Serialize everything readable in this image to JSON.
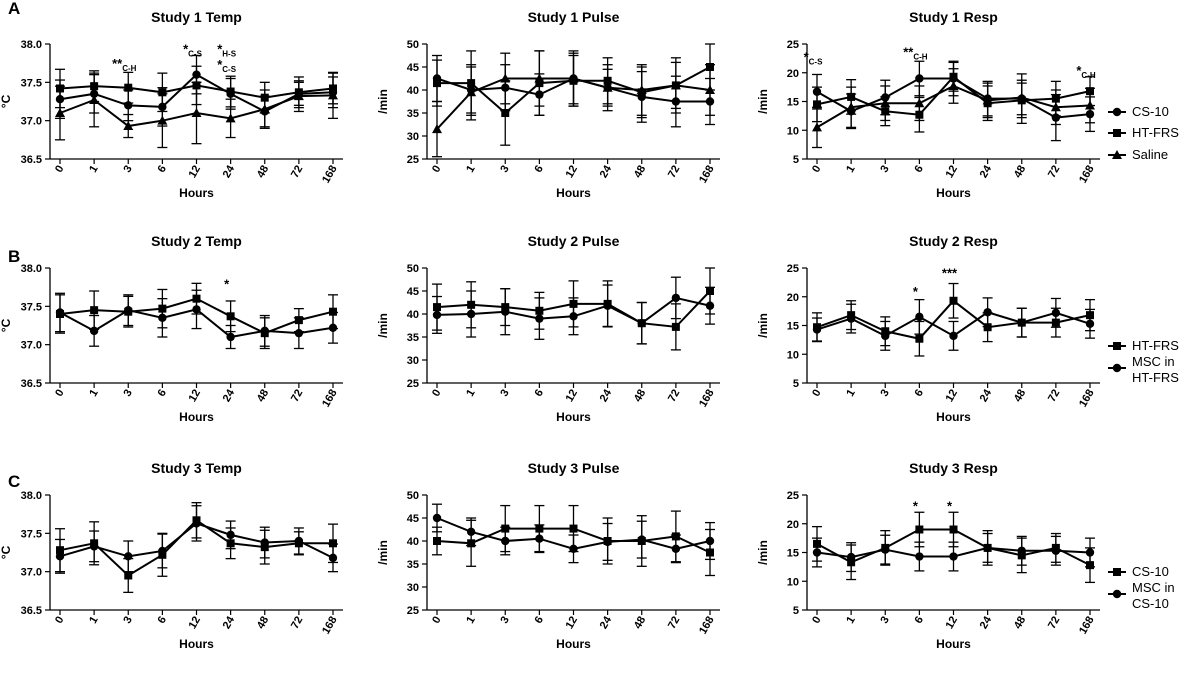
{
  "chart_data": {
    "x_categories": [
      "0",
      "1",
      "3",
      "6",
      "12",
      "24",
      "48",
      "72",
      "168"
    ],
    "x_label": "Hours",
    "panel_labels": [
      "A",
      "B",
      "C"
    ],
    "studies": [
      {
        "panel": "A",
        "legend": [
          "CS-10",
          "HT-FRS",
          "Saline"
        ],
        "charts": [
          {
            "type": "line",
            "title": "Study 1 Temp",
            "ylabel": "°C",
            "ylim": [
              36.5,
              38.0
            ],
            "yticks": [
              "36.5",
              "37.0",
              "37.5",
              "38.0"
            ],
            "series": [
              {
                "name": "CS-10",
                "marker": "circle",
                "values": [
                  37.28,
                  37.35,
                  37.2,
                  37.18,
                  37.6,
                  37.35,
                  37.12,
                  37.35,
                  37.37
                ],
                "errors": [
                  0.25,
                  0.25,
                  0.2,
                  0.25,
                  0.25,
                  0.2,
                  0.2,
                  0.15,
                  0.2
                ]
              },
              {
                "name": "HT-FRS",
                "marker": "square",
                "values": [
                  37.42,
                  37.45,
                  37.43,
                  37.37,
                  37.46,
                  37.38,
                  37.3,
                  37.37,
                  37.42
                ],
                "errors": [
                  0.25,
                  0.2,
                  0.2,
                  0.25,
                  0.25,
                  0.2,
                  0.2,
                  0.2,
                  0.2
                ]
              },
              {
                "name": "Saline",
                "marker": "triangle",
                "values": [
                  37.1,
                  37.27,
                  36.93,
                  37.0,
                  37.1,
                  37.03,
                  37.15,
                  37.32,
                  37.33
                ],
                "errors": [
                  0.35,
                  0.35,
                  0.15,
                  0.35,
                  0.4,
                  0.25,
                  0.25,
                  0.2,
                  0.3
                ]
              }
            ],
            "annotations": [
              {
                "label": "**",
                "sub": "C-H",
                "x": "3",
                "y": 37.75
              },
              {
                "label": "*",
                "sub": "C-S",
                "x": "12",
                "y": 37.94
              },
              {
                "label": "*",
                "sub": "H-S",
                "x": "24",
                "y": 37.94
              },
              {
                "label": "*",
                "sub": "C-S",
                "x": "24",
                "y": 37.74
              }
            ]
          },
          {
            "type": "line",
            "title": "Study 1 Pulse",
            "ylabel": "/min",
            "ylim": [
              25,
              50
            ],
            "yticks": [
              "25",
              "30",
              "35",
              "40",
              "45",
              "50"
            ],
            "series": [
              {
                "name": "CS-10",
                "marker": "circle",
                "values": [
                  42.5,
                  40,
                  40.5,
                  39,
                  42.5,
                  40.5,
                  38.5,
                  37.5,
                  37.5
                ],
                "errors": [
                  5,
                  5,
                  5,
                  4.5,
                  5.5,
                  4,
                  5.5,
                  5.5,
                  5
                ]
              },
              {
                "name": "HT-FRS",
                "marker": "square",
                "values": [
                  41.5,
                  41.5,
                  35,
                  41.5,
                  42,
                  42,
                  39.5,
                  41,
                  45
                ],
                "errors": [
                  5,
                  7,
                  7,
                  7,
                  5.5,
                  5,
                  5.5,
                  6,
                  5
                ]
              },
              {
                "name": "Saline",
                "marker": "triangle",
                "values": [
                  31.5,
                  39.5,
                  42.5,
                  42.5,
                  42.5,
                  40.5,
                  40,
                  41,
                  40
                ],
                "errors": [
                  6,
                  6,
                  5.5,
                  6,
                  6,
                  5,
                  5.5,
                  5,
                  5.5
                ]
              }
            ],
            "annotations": []
          },
          {
            "type": "line",
            "title": "Study 1 Resp",
            "ylabel": "/min",
            "ylim": [
              5,
              25
            ],
            "yticks": [
              "5",
              "10",
              "15",
              "20",
              "25"
            ],
            "series": [
              {
                "name": "CS-10",
                "marker": "circle",
                "values": [
                  16.7,
                  13.3,
                  15.7,
                  19,
                  19,
                  15.5,
                  15.5,
                  12.2,
                  12.8
                ],
                "errors": [
                  3,
                  3,
                  3,
                  3,
                  3,
                  3,
                  4.3,
                  4,
                  3
                ]
              },
              {
                "name": "HT-FRS",
                "marker": "square",
                "values": [
                  14.5,
                  15.8,
                  13.3,
                  12.7,
                  19.3,
                  14.7,
                  15.2,
                  15.5,
                  16.8
                ],
                "errors": [
                  3,
                  3,
                  2.5,
                  3,
                  2.5,
                  3,
                  3,
                  3,
                  2.5
                ]
              },
              {
                "name": "Saline",
                "marker": "triangle",
                "values": [
                  10.5,
                  14,
                  14.7,
                  14.7,
                  17.7,
                  15.2,
                  15.7,
                  14,
                  14.3
                ],
                "errors": [
                  3.5,
                  3.5,
                  3,
                  3,
                  3,
                  3,
                  3,
                  3,
                  3
                ]
              }
            ],
            "annotations": [
              {
                "label": "*",
                "sub": "C-S",
                "x": "0",
                "y": 22.8
              },
              {
                "label": "**",
                "sub": "C-H",
                "x": "6",
                "y": 23.7
              },
              {
                "label": "*",
                "sub": "C-H",
                "x": "168",
                "y": 20.5
              }
            ]
          }
        ]
      },
      {
        "panel": "B",
        "legend": [
          "HT-FRS",
          "MSC in HT-FRS"
        ],
        "charts": [
          {
            "type": "line",
            "title": "Study 2 Temp",
            "ylabel": "°C",
            "ylim": [
              36.5,
              38.0
            ],
            "yticks": [
              "36.5",
              "37.0",
              "37.5",
              "38.0"
            ],
            "series": [
              {
                "name": "HT-FRS",
                "marker": "square",
                "values": [
                  37.4,
                  37.45,
                  37.43,
                  37.47,
                  37.6,
                  37.37,
                  37.15,
                  37.32,
                  37.43
                ],
                "errors": [
                  0.25,
                  0.25,
                  0.2,
                  0.25,
                  0.2,
                  0.2,
                  0.2,
                  0.15,
                  0.22
                ]
              },
              {
                "name": "MSC in HT-FRS",
                "marker": "circle",
                "values": [
                  37.42,
                  37.18,
                  37.45,
                  37.35,
                  37.46,
                  37.1,
                  37.18,
                  37.15,
                  37.22
                ],
                "errors": [
                  0.25,
                  0.2,
                  0.2,
                  0.25,
                  0.25,
                  0.15,
                  0.2,
                  0.2,
                  0.2
                ]
              }
            ],
            "annotations": [
              {
                "label": "*",
                "sub": "",
                "x": "24",
                "y": 37.8
              }
            ]
          },
          {
            "type": "line",
            "title": "Study 2 Pulse",
            "ylabel": "/min",
            "ylim": [
              25,
              50
            ],
            "yticks": [
              "25",
              "30",
              "35",
              "40",
              "45",
              "50"
            ],
            "series": [
              {
                "name": "HT-FRS",
                "marker": "square",
                "values": [
                  41.5,
                  42,
                  41.5,
                  40.7,
                  42.2,
                  42.2,
                  38,
                  37.2,
                  45
                ],
                "errors": [
                  5,
                  5,
                  4,
                  4,
                  5,
                  5,
                  4.5,
                  5,
                  5
                ]
              },
              {
                "name": "MSC in HT-FRS",
                "marker": "circle",
                "values": [
                  39.8,
                  40,
                  40.5,
                  39,
                  39.5,
                  41.8,
                  38,
                  43.5,
                  41.8
                ],
                "errors": [
                  4,
                  5,
                  5,
                  4.5,
                  4,
                  4.5,
                  4.5,
                  4.5,
                  4
                ]
              }
            ],
            "annotations": []
          },
          {
            "type": "line",
            "title": "Study 2 Resp",
            "ylabel": "/min",
            "ylim": [
              5,
              25
            ],
            "yticks": [
              "5",
              "10",
              "15",
              "20",
              "25"
            ],
            "series": [
              {
                "name": "HT-FRS",
                "marker": "square",
                "values": [
                  14.7,
                  16.8,
                  14,
                  12.7,
                  19.3,
                  14.7,
                  15.5,
                  15.5,
                  16.8
                ],
                "errors": [
                  2.5,
                  2.5,
                  2.5,
                  3,
                  3,
                  2.5,
                  2.5,
                  2.5,
                  2.7
                ]
              },
              {
                "name": "MSC in HT-FRS",
                "marker": "circle",
                "values": [
                  14.3,
                  16.2,
                  13.2,
                  16.5,
                  13.2,
                  17.3,
                  15.5,
                  17.2,
                  15.3
                ],
                "errors": [
                  2,
                  2.5,
                  2.5,
                  3,
                  2.5,
                  2.5,
                  2.5,
                  2.5,
                  2.5
                ]
              }
            ],
            "annotations": [
              {
                "label": "*",
                "sub": "",
                "x": "6",
                "y": 21
              },
              {
                "label": "***",
                "sub": "",
                "x": "12",
                "y": 24.2
              }
            ]
          }
        ]
      },
      {
        "panel": "C",
        "legend": [
          "CS-10",
          "MSC in CS-10"
        ],
        "charts": [
          {
            "type": "line",
            "title": "Study 3 Temp",
            "ylabel": "°C",
            "ylim": [
              36.5,
              38.0
            ],
            "yticks": [
              "36.5",
              "37.0",
              "37.5",
              "38.0"
            ],
            "series": [
              {
                "name": "CS-10",
                "marker": "square",
                "values": [
                  37.28,
                  37.37,
                  36.95,
                  37.22,
                  37.67,
                  37.37,
                  37.32,
                  37.37,
                  37.37
                ],
                "errors": [
                  0.28,
                  0.28,
                  0.22,
                  0.28,
                  0.23,
                  0.2,
                  0.22,
                  0.15,
                  0.25
                ]
              },
              {
                "name": "MSC in CS-10",
                "marker": "circle",
                "values": [
                  37.2,
                  37.33,
                  37.2,
                  37.27,
                  37.63,
                  37.48,
                  37.38,
                  37.4,
                  37.18
                ],
                "errors": [
                  0.22,
                  0.2,
                  0.2,
                  0.22,
                  0.23,
                  0.18,
                  0.2,
                  0.17,
                  0.18
                ]
              }
            ],
            "annotations": []
          },
          {
            "type": "line",
            "title": "Study 3 Pulse",
            "ylabel": "/min",
            "ylim": [
              25,
              50
            ],
            "yticks": [
              "25",
              "30",
              "35",
              "40",
              "45",
              "50"
            ],
            "series": [
              {
                "name": "CS-10",
                "marker": "square",
                "values": [
                  40,
                  39.5,
                  42.7,
                  42.7,
                  42.7,
                  40,
                  40,
                  41,
                  37.5
                ],
                "errors": [
                  3,
                  5,
                  5,
                  5,
                  5,
                  5,
                  5.5,
                  5.5,
                  5
                ]
              },
              {
                "name": "MSC in CS-10",
                "marker": "circle",
                "values": [
                  45,
                  42,
                  40,
                  40.5,
                  38.3,
                  39.8,
                  40.3,
                  38.3,
                  40
                ],
                "errors": [
                  3,
                  3,
                  3,
                  3,
                  3,
                  4,
                  4,
                  3,
                  4
                ]
              }
            ],
            "annotations": []
          },
          {
            "type": "line",
            "title": "Study 3 Resp",
            "ylabel": "/min",
            "ylim": [
              5,
              25
            ],
            "yticks": [
              "5",
              "10",
              "15",
              "20",
              "25"
            ],
            "series": [
              {
                "name": "CS-10",
                "marker": "square",
                "values": [
                  16.5,
                  13.3,
                  15.8,
                  19,
                  19,
                  15.8,
                  14.5,
                  15.8,
                  12.8
                ],
                "errors": [
                  3,
                  3,
                  3,
                  3,
                  3,
                  3,
                  3,
                  2.5,
                  3
                ]
              },
              {
                "name": "MSC in CS-10",
                "marker": "circle",
                "values": [
                  15,
                  14.2,
                  15.5,
                  14.3,
                  14.3,
                  15.8,
                  15.3,
                  15.3,
                  15
                ],
                "errors": [
                  2.5,
                  2.5,
                  2.5,
                  2.5,
                  2.5,
                  2.5,
                  2.5,
                  2.5,
                  2.5
                ]
              }
            ],
            "annotations": [
              {
                "label": "*",
                "sub": "",
                "x": "6",
                "y": 23.2
              },
              {
                "label": "*",
                "sub": "",
                "x": "12",
                "y": 23.2
              }
            ]
          }
        ]
      }
    ]
  }
}
